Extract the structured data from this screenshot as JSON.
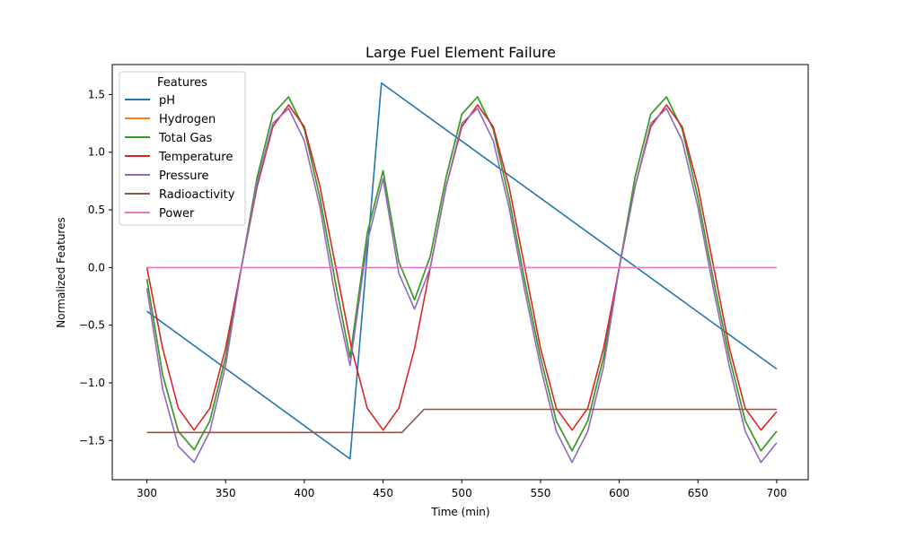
{
  "chart_data": {
    "type": "line",
    "title": "Large Fuel Element Failure",
    "xlabel": "Time (min)",
    "ylabel": "Normalized Features",
    "xlim": [
      278,
      720
    ],
    "ylim": [
      -1.84,
      1.76
    ],
    "xticks": [
      300,
      350,
      400,
      450,
      500,
      550,
      600,
      650,
      700
    ],
    "yticks": [
      -1.5,
      -1.0,
      -0.5,
      0.0,
      0.5,
      1.0,
      1.5
    ],
    "ytick_labels": [
      "−1.5",
      "−1.0",
      "−0.5",
      "0.0",
      "0.5",
      "1.0",
      "1.5"
    ],
    "legend": {
      "title": "Features",
      "position": "top-left"
    },
    "grid": false,
    "series": [
      {
        "name": "pH",
        "color": "#1f77b4",
        "x": [
          300,
          429,
          449,
          700
        ],
        "y": [
          -0.38,
          -1.66,
          1.6,
          -0.88
        ]
      },
      {
        "name": "Hydrogen",
        "color": "#ff7f0e",
        "x": [
          300,
          310,
          320,
          330,
          340,
          350,
          360,
          370,
          380,
          390,
          400,
          410,
          420,
          429,
          440,
          450,
          460,
          470,
          480,
          490,
          500,
          510,
          520,
          530,
          540,
          550,
          560,
          570,
          580,
          590,
          600,
          610,
          620,
          630,
          640,
          650,
          660,
          670,
          680,
          690,
          700
        ],
        "y": [
          -0.1,
          -0.93,
          -1.42,
          -1.58,
          -1.33,
          -0.78,
          0.0,
          0.78,
          1.33,
          1.48,
          1.2,
          0.6,
          -0.15,
          -0.78,
          0.3,
          0.84,
          0.05,
          -0.28,
          0.1,
          0.78,
          1.33,
          1.48,
          1.2,
          0.6,
          -0.12,
          -0.78,
          -1.33,
          -1.59,
          -1.33,
          -0.78,
          0.0,
          0.78,
          1.33,
          1.48,
          1.2,
          0.6,
          -0.12,
          -0.78,
          -1.33,
          -1.59,
          -1.42
        ]
      },
      {
        "name": "Total Gas",
        "color": "#2ca02c",
        "x": [
          300,
          310,
          320,
          330,
          340,
          350,
          360,
          370,
          380,
          390,
          400,
          410,
          420,
          429,
          440,
          450,
          460,
          470,
          480,
          490,
          500,
          510,
          520,
          530,
          540,
          550,
          560,
          570,
          580,
          590,
          600,
          610,
          620,
          630,
          640,
          650,
          660,
          670,
          680,
          690,
          700
        ],
        "y": [
          -0.1,
          -0.93,
          -1.42,
          -1.58,
          -1.33,
          -0.78,
          0.0,
          0.78,
          1.33,
          1.48,
          1.2,
          0.6,
          -0.15,
          -0.78,
          0.3,
          0.84,
          0.05,
          -0.28,
          0.1,
          0.78,
          1.33,
          1.48,
          1.2,
          0.6,
          -0.12,
          -0.78,
          -1.33,
          -1.59,
          -1.33,
          -0.78,
          0.0,
          0.78,
          1.33,
          1.48,
          1.2,
          0.6,
          -0.12,
          -0.78,
          -1.33,
          -1.59,
          -1.42
        ]
      },
      {
        "name": "Temperature",
        "color": "#d62728",
        "x": [
          300,
          310,
          320,
          330,
          340,
          350,
          360,
          370,
          380,
          390,
          400,
          410,
          420,
          430,
          440,
          450,
          460,
          470,
          480,
          490,
          500,
          510,
          520,
          530,
          540,
          550,
          560,
          570,
          580,
          590,
          600,
          610,
          620,
          630,
          640,
          650,
          660,
          670,
          680,
          690,
          700
        ],
        "y": [
          0.0,
          -0.7,
          -1.22,
          -1.41,
          -1.22,
          -0.7,
          0.0,
          0.7,
          1.22,
          1.41,
          1.22,
          0.7,
          0.0,
          -0.7,
          -1.22,
          -1.41,
          -1.22,
          -0.7,
          0.0,
          0.7,
          1.22,
          1.41,
          1.22,
          0.7,
          0.0,
          -0.7,
          -1.22,
          -1.41,
          -1.22,
          -0.7,
          0.0,
          0.7,
          1.22,
          1.41,
          1.22,
          0.7,
          0.0,
          -0.7,
          -1.22,
          -1.41,
          -1.25
        ]
      },
      {
        "name": "Pressure",
        "color": "#9467bd",
        "x": [
          300,
          310,
          320,
          330,
          340,
          350,
          360,
          370,
          380,
          390,
          400,
          410,
          420,
          429,
          440,
          450,
          460,
          470,
          480,
          490,
          500,
          510,
          520,
          530,
          540,
          550,
          560,
          570,
          580,
          590,
          600,
          610,
          620,
          630,
          640,
          650,
          660,
          670,
          680,
          690,
          700
        ],
        "y": [
          -0.18,
          -1.05,
          -1.55,
          -1.69,
          -1.42,
          -0.85,
          0.0,
          0.73,
          1.25,
          1.38,
          1.1,
          0.52,
          -0.28,
          -0.85,
          0.22,
          0.77,
          -0.05,
          -0.36,
          0.0,
          0.7,
          1.25,
          1.38,
          1.1,
          0.52,
          -0.2,
          -0.86,
          -1.42,
          -1.69,
          -1.42,
          -0.86,
          0.0,
          0.7,
          1.25,
          1.38,
          1.1,
          0.52,
          -0.2,
          -0.86,
          -1.42,
          -1.69,
          -1.52
        ]
      },
      {
        "name": "Radioactivity",
        "color": "#8c564b",
        "x": [
          300,
          462,
          476,
          700
        ],
        "y": [
          -1.43,
          -1.43,
          -1.23,
          -1.23
        ]
      },
      {
        "name": "Power",
        "color": "#e377c2",
        "x": [
          300,
          700
        ],
        "y": [
          0.0,
          0.0
        ]
      }
    ]
  }
}
